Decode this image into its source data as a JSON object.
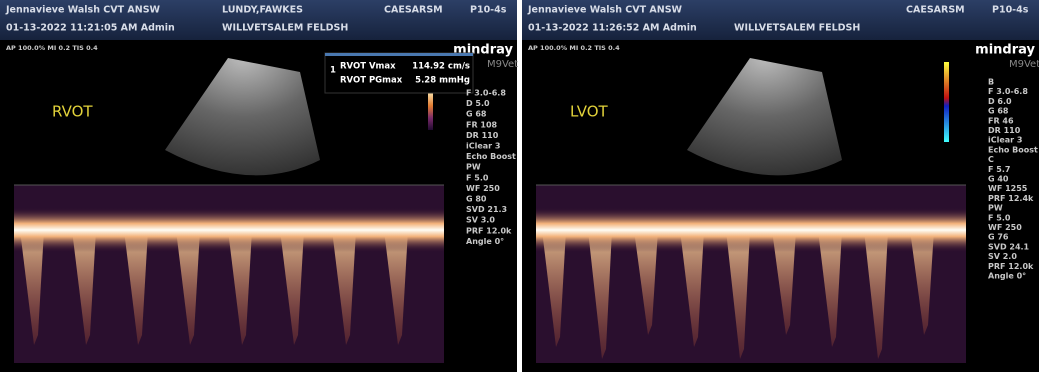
{
  "panels": [
    {
      "operator": "Jennavieve Walsh CVT ANSW",
      "patient": "LUNDY,FAWKES",
      "user": "CAESARSM",
      "probe": "P10-4s",
      "datetime": "01-13-2022 11:21:05 AM Admin",
      "clinic": "WILLVETSALEM FELDSH",
      "acoustic": "AP 100.0% MI 0.2 TIS 0.4",
      "brand": "mindray",
      "model": "M9Vet",
      "view_label": "RVOT",
      "measurement": {
        "index": "1",
        "rows": [
          [
            "RVOT Vmax",
            "114.92 cm/s"
          ],
          [
            "RVOT PGmax",
            "5.28 mmHg"
          ]
        ]
      },
      "parameters": [
        "F 3.0-6.8",
        "D 5.0",
        "G 68",
        "FR 108",
        "DR 110",
        "iClear 3",
        "Echo Boost",
        "PW",
        "F 5.0",
        "WF 250",
        "G 80",
        "SVD 21.3",
        "SV 3.0",
        "PRF 12.0k",
        "Angle 0°"
      ]
    },
    {
      "operator": "Jennavieve Walsh CVT ANSW",
      "user": "CAESARSM",
      "probe": "P10-4s",
      "datetime": "01-13-2022 11:26:52 AM Admin",
      "clinic": "WILLVETSALEM FELDSH",
      "acoustic": "AP 100.0% MI 0.2 TIS 0.4",
      "brand": "mindray",
      "model": "M9Vet",
      "view_label": "LVOT",
      "parameters": [
        "B",
        "F 3.0-6.8",
        "D 6.0",
        "G 68",
        "FR 46",
        "DR 110",
        "iClear 3",
        "Echo Boost",
        "C",
        "F 5.7",
        "G 40",
        "WF 1255",
        "PRF 12.4k",
        "PW",
        "F 5.0",
        "WF 250",
        "G 76",
        "SVD 24.1",
        "SV 2.0",
        "PRF 12.0k",
        "Angle 0°"
      ]
    }
  ]
}
